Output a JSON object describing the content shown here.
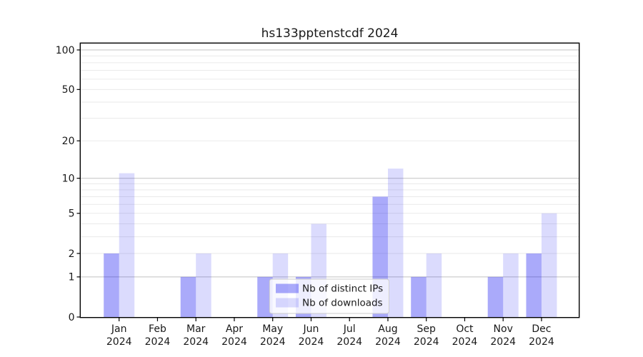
{
  "chart_data": {
    "type": "bar",
    "title": "hs133pptenstcdf 2024",
    "categories": [
      "Jan",
      "Feb",
      "Mar",
      "Apr",
      "May",
      "Jun",
      "Jul",
      "Aug",
      "Sep",
      "Oct",
      "Nov",
      "Dec"
    ],
    "category_year": "2024",
    "series": [
      {
        "name": "Nb of distinct IPs",
        "color_solid": "#a9a9f8",
        "color_rgba": "rgba(0,0,240,0.333)",
        "values": [
          2,
          0,
          1,
          0,
          1,
          1,
          0,
          7,
          1,
          0,
          1,
          2
        ]
      },
      {
        "name": "Nb of downloads",
        "color_solid": "#dcdcfa",
        "color_rgba": "rgba(0,0,240,0.141)",
        "values": [
          11,
          0,
          2,
          0,
          2,
          4,
          0,
          12,
          2,
          0,
          2,
          5
        ]
      }
    ],
    "yscale": "log1p",
    "ylim": [
      0,
      111.8
    ],
    "ytick_values": [
      0,
      1,
      2,
      5,
      10,
      20,
      50,
      100
    ],
    "ytick_labels": [
      "0",
      "1",
      "2",
      "5",
      "10",
      "20",
      "50",
      "100"
    ],
    "major_gridlines": [
      1,
      10,
      100
    ],
    "minor_gridlines": [
      2,
      3,
      4,
      5,
      6,
      7,
      8,
      9,
      20,
      30,
      40,
      50,
      60,
      70,
      80,
      90
    ],
    "grid": true,
    "legend_position": "lower-center-inside"
  },
  "style": {
    "spine_color": "#000000",
    "text_color": "#191919",
    "major_grid_color": "#c9c9c9",
    "minor_grid_color": "#eaeaea",
    "legend_border_color": "#cccccc",
    "legend_bg": "rgba(255,255,255,0.8)"
  }
}
